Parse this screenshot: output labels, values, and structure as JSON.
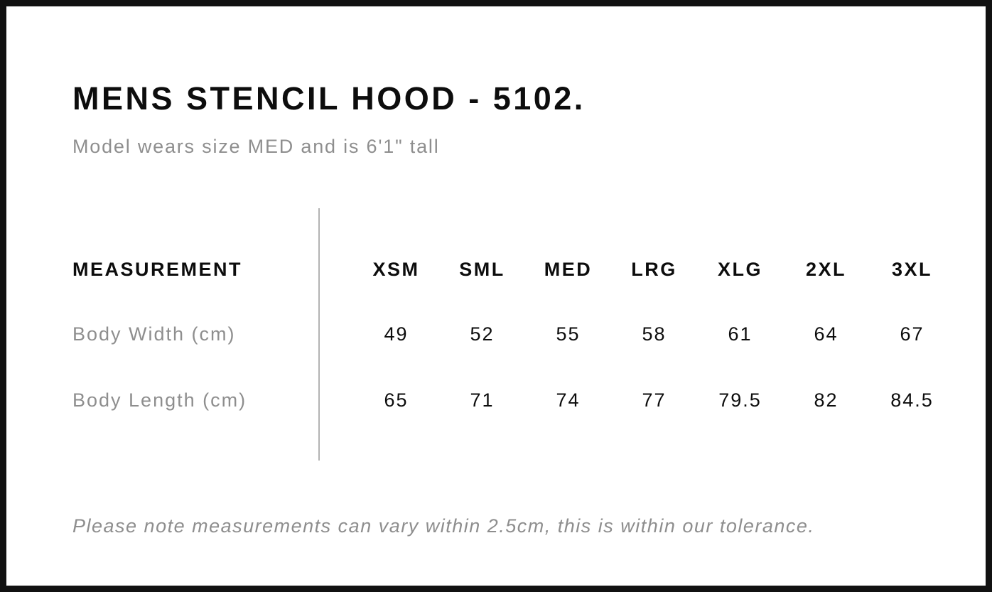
{
  "page": {
    "title": "MENS STENCIL HOOD - 5102.",
    "subtitle": "Model wears size MED and is 6'1\" tall",
    "note": "Please note measurements can vary within 2.5cm, this is within our tolerance."
  },
  "table": {
    "header_label": "MEASUREMENT",
    "sizes": [
      "XSM",
      "SML",
      "MED",
      "LRG",
      "XLG",
      "2XL",
      "3XL"
    ],
    "rows": [
      {
        "label": "Body Width (cm)",
        "values": [
          "49",
          "52",
          "55",
          "58",
          "61",
          "64",
          "67"
        ]
      },
      {
        "label": "Body Length (cm)",
        "values": [
          "65",
          "71",
          "74",
          "77",
          "79.5",
          "82",
          "84.5"
        ]
      }
    ]
  },
  "colors": {
    "frame": "#111111",
    "text_primary": "#0d0d0d",
    "text_muted": "#8e8e8e",
    "divider": "#b3b3b3"
  }
}
